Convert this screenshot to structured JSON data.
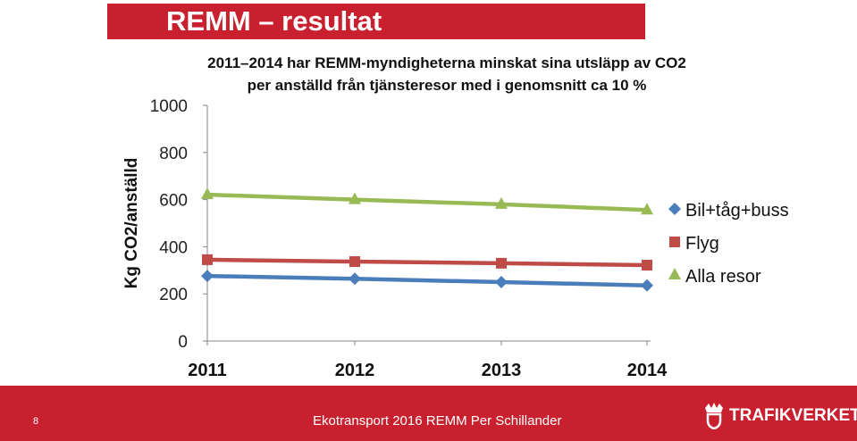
{
  "slide": {
    "title": "REMM – resultat",
    "page_number": "8",
    "footer_text": "Ekotransport 2016 REMM Per Schillander",
    "logo_text": "TRAFIKVERKET",
    "accent_color": "#c8202e"
  },
  "chart_data": {
    "type": "line",
    "title_lines": [
      "2011–2014 har REMM-myndigheterna minskat sina utsläpp av CO2",
      "per anställd från tjänsteresor med i genomsnitt ca 10 %"
    ],
    "xlabel": "",
    "ylabel": "Kg CO2/anställd",
    "categories": [
      "2011",
      "2012",
      "2013",
      "2014"
    ],
    "ylim": [
      0,
      1000
    ],
    "yticks": [
      "0",
      "200",
      "400",
      "600",
      "800",
      "1000"
    ],
    "grid": false,
    "legend_position": "right",
    "series": [
      {
        "name": "Bil+tåg+buss",
        "color": "#4a7ebb",
        "marker": "diamond",
        "values": [
          276,
          264,
          250,
          236
        ]
      },
      {
        "name": "Flyg",
        "color": "#be4b48",
        "marker": "square",
        "values": [
          345,
          337,
          330,
          322
        ]
      },
      {
        "name": "Alla resor",
        "color": "#98b954",
        "marker": "triangle",
        "values": [
          621,
          600,
          580,
          556
        ]
      }
    ]
  }
}
